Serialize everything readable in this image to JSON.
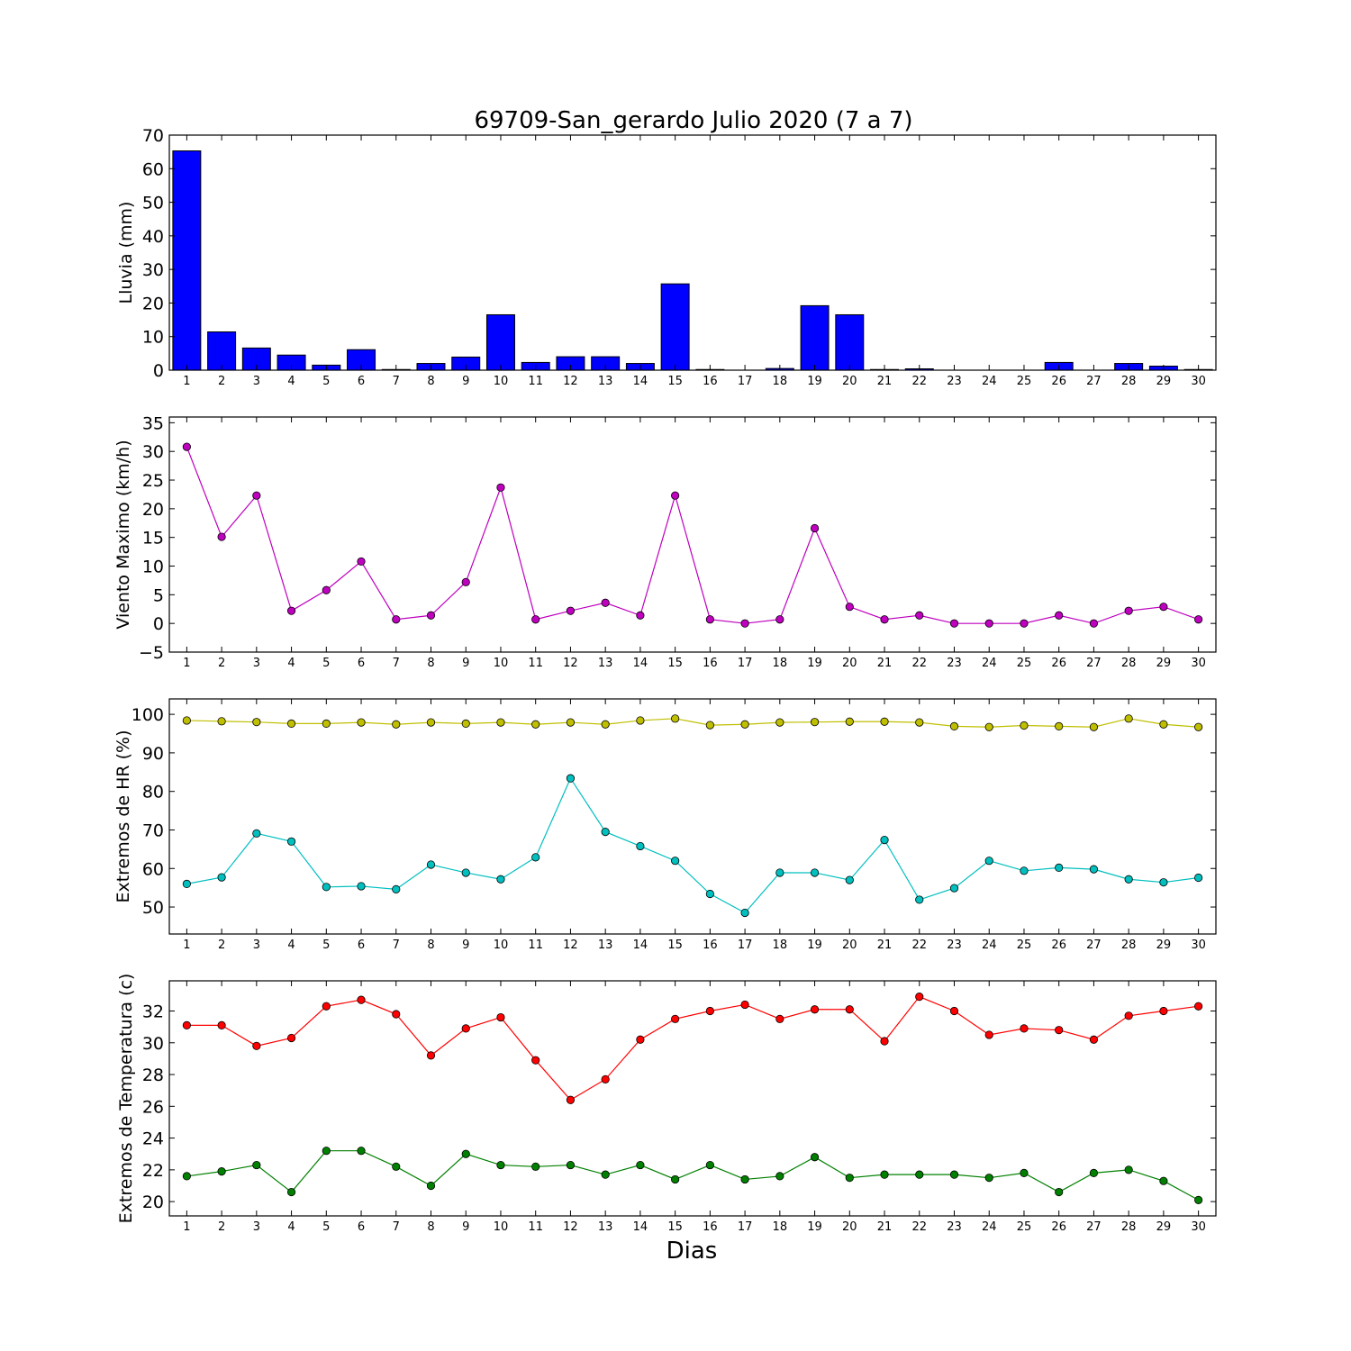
{
  "figure": {
    "title": "69709-San_gerardo Julio 2020  (7 a 7)",
    "xlabel": "Dias"
  },
  "chart_data": [
    {
      "id": "lluvia",
      "type": "bar",
      "ylabel": "Lluvia (mm)",
      "ylim": [
        0,
        70
      ],
      "yticks": [
        0,
        10,
        20,
        30,
        40,
        50,
        60,
        70
      ],
      "categories": [
        1,
        2,
        3,
        4,
        5,
        6,
        7,
        8,
        9,
        10,
        11,
        12,
        13,
        14,
        15,
        16,
        17,
        18,
        19,
        20,
        21,
        22,
        23,
        24,
        25,
        26,
        27,
        28,
        29,
        30
      ],
      "series": [
        {
          "color": "#0000ff",
          "values": [
            65.3,
            11.4,
            6.6,
            4.5,
            1.5,
            6.1,
            0.2,
            2.0,
            3.9,
            16.5,
            2.3,
            4.0,
            4.0,
            2.0,
            25.7,
            0.2,
            0,
            0.5,
            19.2,
            16.5,
            0.2,
            0.4,
            0,
            0,
            0,
            2.3,
            0,
            2.0,
            1.2,
            0.2
          ]
        }
      ]
    },
    {
      "id": "viento",
      "type": "line",
      "ylabel": "Viento Maximo (km/h)",
      "ylim": [
        -5,
        36
      ],
      "yticks": [
        -5,
        0,
        5,
        10,
        15,
        20,
        25,
        30,
        35
      ],
      "categories": [
        1,
        2,
        3,
        4,
        5,
        6,
        7,
        8,
        9,
        10,
        11,
        12,
        13,
        14,
        15,
        16,
        17,
        18,
        19,
        20,
        21,
        22,
        23,
        24,
        25,
        26,
        27,
        28,
        29,
        30
      ],
      "series": [
        {
          "color": "#bf00bf",
          "values": [
            30.8,
            15.1,
            22.3,
            2.2,
            5.8,
            10.8,
            0.7,
            1.4,
            7.2,
            23.7,
            0.7,
            2.2,
            3.6,
            1.4,
            22.3,
            0.7,
            0,
            0.7,
            16.6,
            2.9,
            0.7,
            1.4,
            0,
            0,
            0,
            1.4,
            0,
            2.2,
            2.9,
            0.7
          ]
        }
      ]
    },
    {
      "id": "hr",
      "type": "line",
      "ylabel": "Extremos de HR (%)",
      "ylim": [
        43,
        104
      ],
      "yticks": [
        50,
        60,
        70,
        80,
        90,
        100
      ],
      "categories": [
        1,
        2,
        3,
        4,
        5,
        6,
        7,
        8,
        9,
        10,
        11,
        12,
        13,
        14,
        15,
        16,
        17,
        18,
        19,
        20,
        21,
        22,
        23,
        24,
        25,
        26,
        27,
        28,
        29,
        30
      ],
      "series": [
        {
          "color": "#bfbf00",
          "values": [
            98.4,
            98.2,
            98.0,
            97.6,
            97.6,
            97.9,
            97.4,
            97.9,
            97.6,
            97.9,
            97.4,
            97.9,
            97.4,
            98.4,
            98.9,
            97.2,
            97.4,
            97.9,
            98.0,
            98.1,
            98.1,
            97.9,
            96.9,
            96.7,
            97.1,
            96.9,
            96.7,
            98.9,
            97.4,
            96.7
          ]
        },
        {
          "color": "#00bfbf",
          "values": [
            56.0,
            57.7,
            69.1,
            67.0,
            55.2,
            55.4,
            54.6,
            61.0,
            58.9,
            57.2,
            62.9,
            83.4,
            69.5,
            65.8,
            62.0,
            53.4,
            48.5,
            58.9,
            58.9,
            57.0,
            67.4,
            51.9,
            54.9,
            62.0,
            59.4,
            60.2,
            59.8,
            57.2,
            56.4,
            57.6
          ]
        }
      ]
    },
    {
      "id": "temp",
      "type": "line",
      "ylabel": "Extremos de Temperatura (c)",
      "ylim": [
        19.1,
        33.9
      ],
      "yticks": [
        20,
        22,
        24,
        26,
        28,
        30,
        32
      ],
      "categories": [
        1,
        2,
        3,
        4,
        5,
        6,
        7,
        8,
        9,
        10,
        11,
        12,
        13,
        14,
        15,
        16,
        17,
        18,
        19,
        20,
        21,
        22,
        23,
        24,
        25,
        26,
        27,
        28,
        29,
        30
      ],
      "series": [
        {
          "color": "#ff0000",
          "values": [
            31.1,
            31.1,
            29.8,
            30.3,
            32.3,
            32.7,
            31.8,
            29.2,
            30.9,
            31.6,
            28.9,
            26.4,
            27.7,
            30.2,
            31.5,
            32.0,
            32.4,
            31.5,
            32.1,
            32.1,
            30.1,
            32.9,
            32.0,
            30.5,
            30.9,
            30.8,
            30.2,
            31.7,
            32.0,
            32.3
          ]
        },
        {
          "color": "#008000",
          "values": [
            21.6,
            21.9,
            22.3,
            20.6,
            23.2,
            23.2,
            22.2,
            21.0,
            23.0,
            22.3,
            22.2,
            22.3,
            21.7,
            22.3,
            21.4,
            22.3,
            21.4,
            21.6,
            22.8,
            21.5,
            21.7,
            21.7,
            21.7,
            21.5,
            21.8,
            20.6,
            21.8,
            22.0,
            21.3,
            20.1
          ]
        }
      ]
    }
  ]
}
